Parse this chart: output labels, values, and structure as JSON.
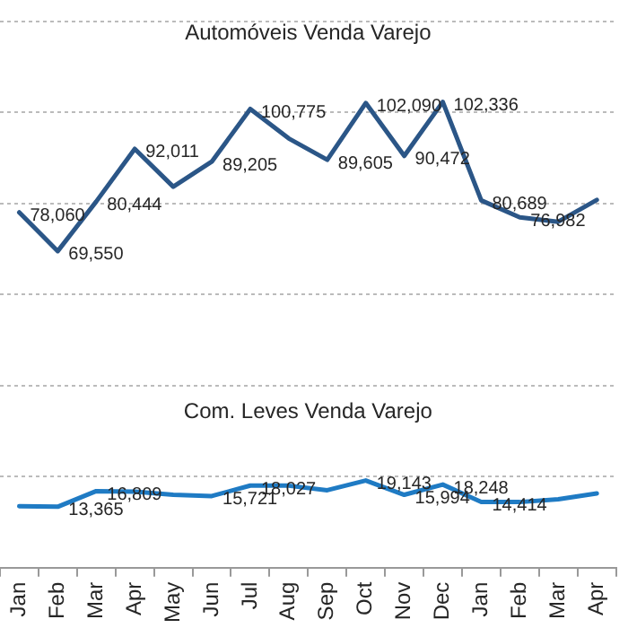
{
  "chart_data": {
    "type": "line",
    "categories": [
      "Jan",
      "Feb",
      "Mar",
      "Apr",
      "May",
      "Jun",
      "Jul",
      "Aug",
      "Sep",
      "Oct",
      "Nov",
      "Dec",
      "Jan",
      "Feb",
      "Mar",
      "Apr"
    ],
    "series": [
      {
        "name": "Automóveis Venda Varejo",
        "color": "#2b5687",
        "values": [
          78060,
          69550,
          80444,
          92011,
          83700,
          89205,
          100775,
          94300,
          89605,
          102090,
          90472,
          102336,
          80689,
          76982,
          76000,
          80800
        ],
        "value_labels": [
          "78,060",
          "69,550",
          "80,444",
          "92,011",
          null,
          "89,205",
          "100,775",
          null,
          "89,605",
          "102,090",
          "90,472",
          "102,336",
          "80,689",
          "76,982",
          null,
          null
        ]
      },
      {
        "name": "Com. Leves Venda Varejo",
        "color": "#1f7bc4",
        "values": [
          13500,
          13365,
          16809,
          16700,
          16000,
          15721,
          18027,
          18000,
          17000,
          19143,
          15994,
          18248,
          14414,
          14400,
          15000,
          16300
        ],
        "value_labels": [
          null,
          "13,365",
          "16,809",
          null,
          null,
          "15,721",
          "18,027",
          null,
          null,
          "19,143",
          "15,994",
          "18,248",
          "14,414",
          null,
          null,
          null
        ]
      }
    ],
    "tick_labels": "x",
    "grid": "y",
    "legend": false,
    "marker": "none",
    "line_style": "solid"
  }
}
